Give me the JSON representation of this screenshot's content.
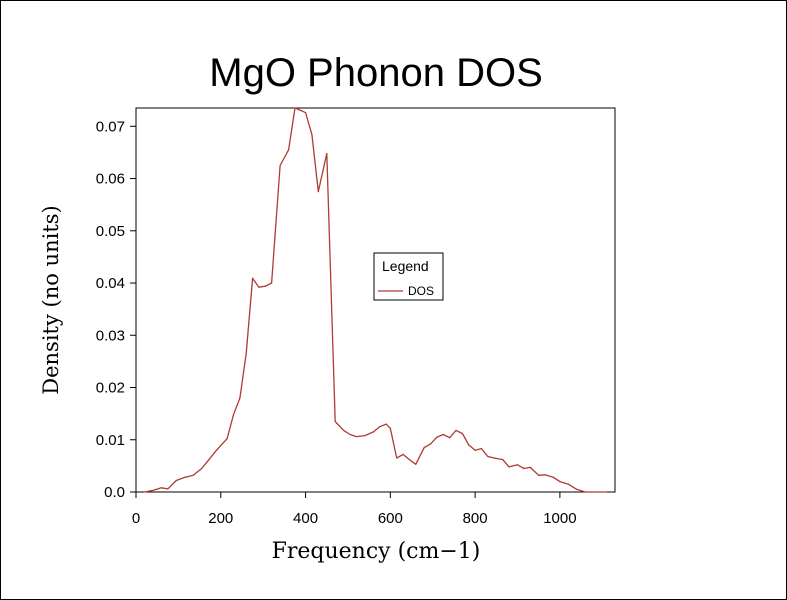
{
  "chart_data": {
    "type": "line",
    "title": "MgO Phonon DOS",
    "xlabel": "Frequency (cm−1)",
    "ylabel": "Density (no units)",
    "xlim": [
      0,
      1130
    ],
    "ylim": [
      0,
      0.0735
    ],
    "xticks": [
      0,
      200,
      400,
      600,
      800,
      1000
    ],
    "xtick_labels": [
      "0",
      "200",
      "400",
      "600",
      "800",
      "1000"
    ],
    "yticks": [
      0,
      0.01,
      0.02,
      0.03,
      0.04,
      0.05,
      0.06,
      0.07
    ],
    "ytick_labels": [
      "0.0",
      "0.01",
      "0.02",
      "0.03",
      "0.04",
      "0.05",
      "0.06",
      "0.07"
    ],
    "grid": false,
    "legend": {
      "title": "Legend",
      "placement": "center-right"
    },
    "series": [
      {
        "name": "DOS",
        "color": "#b03a32",
        "x": [
          20,
          40,
          60,
          75,
          95,
          115,
          135,
          155,
          170,
          190,
          215,
          230,
          245,
          260,
          275,
          290,
          305,
          320,
          340,
          360,
          375,
          390,
          400,
          415,
          430,
          450,
          470,
          490,
          505,
          520,
          540,
          560,
          575,
          590,
          600,
          615,
          630,
          645,
          660,
          680,
          695,
          710,
          725,
          740,
          755,
          770,
          785,
          800,
          815,
          830,
          845,
          865,
          880,
          900,
          915,
          930,
          950,
          965,
          985,
          1000,
          1020,
          1040,
          1060,
          1075,
          1090,
          1110
        ],
        "y": [
          0.0,
          0.0003,
          0.0008,
          0.0006,
          0.0022,
          0.0028,
          0.0032,
          0.0045,
          0.006,
          0.008,
          0.0102,
          0.0148,
          0.018,
          0.0265,
          0.0409,
          0.0392,
          0.0394,
          0.04,
          0.0625,
          0.0655,
          0.0735,
          0.073,
          0.0726,
          0.0684,
          0.0575,
          0.0648,
          0.0135,
          0.0118,
          0.011,
          0.0106,
          0.0108,
          0.0115,
          0.0125,
          0.013,
          0.0122,
          0.0065,
          0.0072,
          0.0062,
          0.0053,
          0.0085,
          0.0092,
          0.0105,
          0.011,
          0.0104,
          0.0118,
          0.0112,
          0.009,
          0.008,
          0.0083,
          0.0068,
          0.0065,
          0.0062,
          0.0048,
          0.0052,
          0.0045,
          0.0047,
          0.0032,
          0.0033,
          0.0028,
          0.002,
          0.0015,
          0.0005,
          0.0,
          0.0,
          0.0,
          0.0
        ]
      }
    ]
  }
}
